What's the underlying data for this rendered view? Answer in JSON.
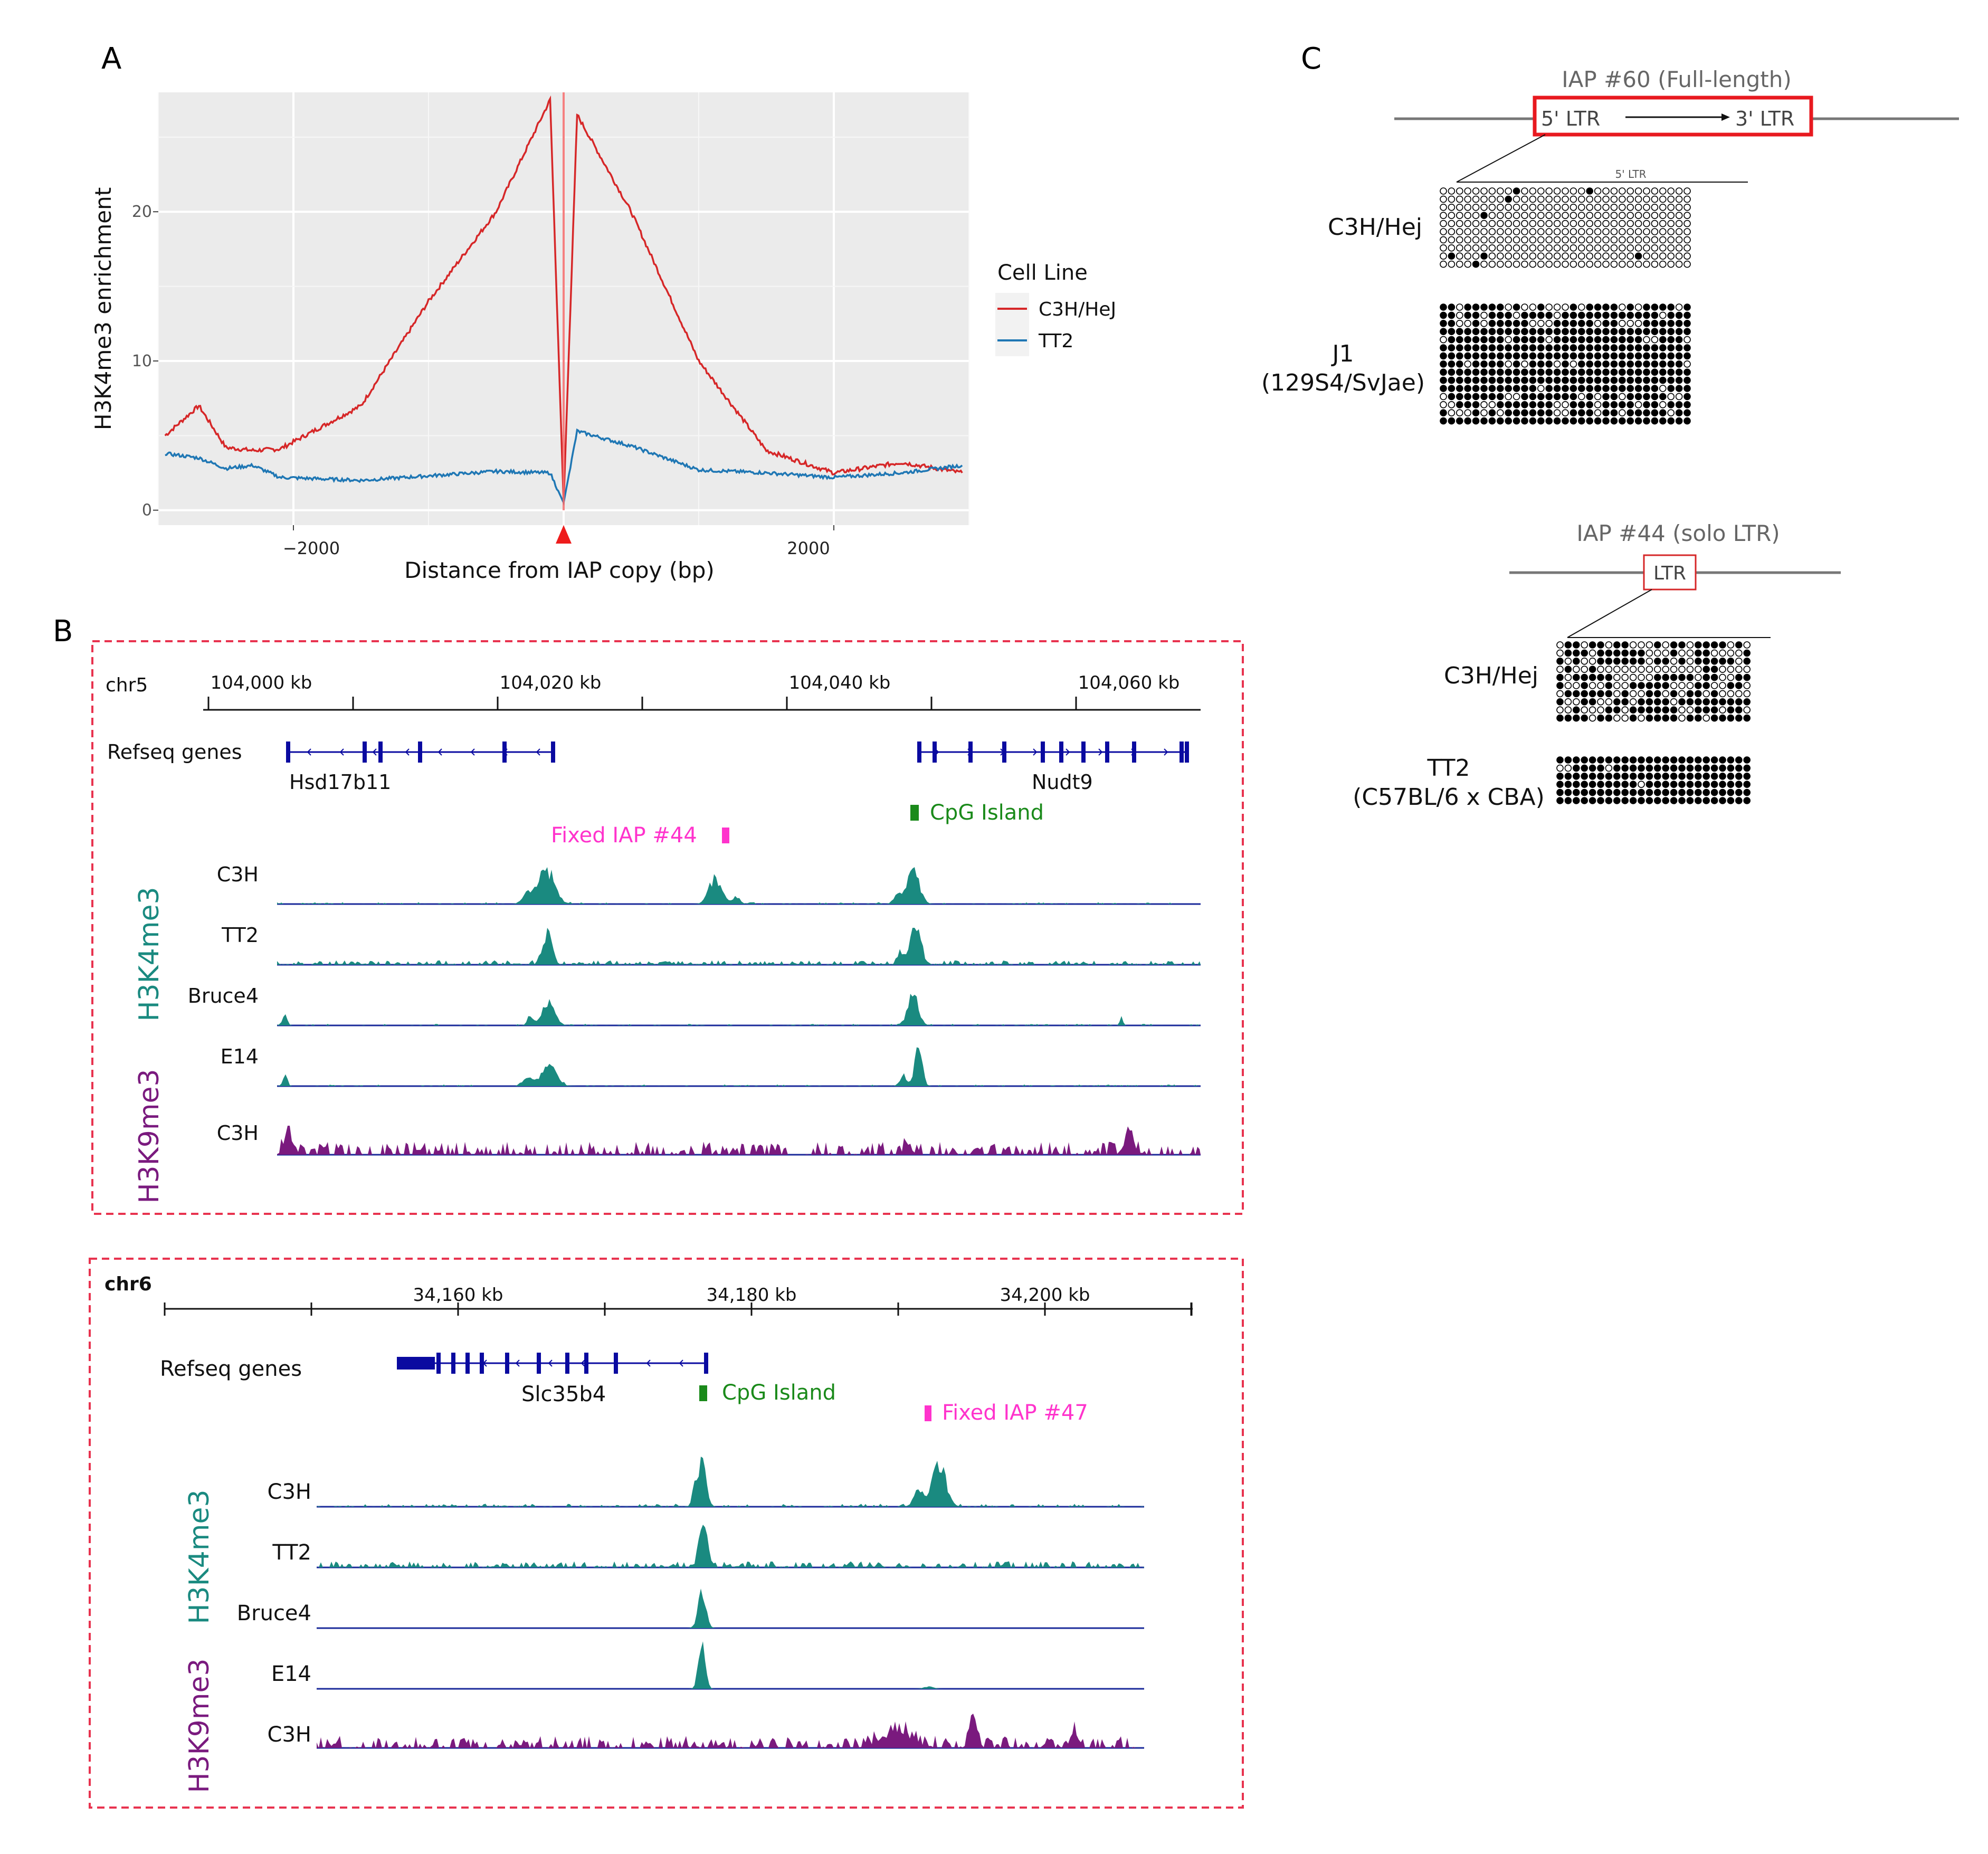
{
  "panel_labels": {
    "a": "A",
    "b": "B",
    "c": "C"
  },
  "panelA": {
    "ylabel": "H3K4me3 enrichment",
    "xlabel": "Distance from IAP copy (bp)",
    "legend_title": "Cell Line",
    "legend_items": [
      "C3H/HeJ",
      "TT2"
    ],
    "xticks": [
      "−2000",
      "2000"
    ],
    "yticks": [
      "20",
      "10",
      "0"
    ]
  },
  "panelB1": {
    "chrom": "chr5",
    "ticks": [
      "104,000 kb",
      "104,020 kb",
      "104,040 kb",
      "104,060 kb"
    ],
    "refseq_label": "Refseq genes",
    "gene1": "Hsd17b11",
    "gene2": "Nudt9",
    "cpg": "CpG Island",
    "iap": "Fixed IAP #44",
    "mark1": "H3K4me3",
    "mark2": "H3K9me3",
    "tracks": [
      "C3H",
      "TT2",
      "Bruce4",
      "E14",
      "C3H"
    ]
  },
  "panelB2": {
    "chrom": "chr6",
    "ticks": [
      "34,160 kb",
      "34,180 kb",
      "34,200 kb"
    ],
    "refseq_label": "Refseq genes",
    "gene": "Slc35b4",
    "cpg": "CpG Island",
    "iap": "Fixed IAP #47",
    "mark1": "H3K4me3",
    "mark2": "H3K9me3",
    "tracks": [
      "C3H",
      "TT2",
      "Bruce4",
      "E14",
      "C3H"
    ]
  },
  "panelC1": {
    "title": "IAP #60 (Full-length)",
    "ltr5": "5' LTR",
    "ltr3": "3' LTR",
    "small_label": "5' LTR",
    "strain1": "C3H/Hej",
    "strain2_line1": "J1",
    "strain2_line2": "(129S4/SvJae)"
  },
  "panelC2": {
    "title": "IAP #44  (solo LTR)",
    "ltr": "LTR",
    "strain1": "C3H/Hej",
    "strain2_line1": "TT2",
    "strain2_line2": "(C57BL/6 x CBA)"
  },
  "colors": {
    "c3h": "#d62728",
    "tt2": "#1f77b4",
    "h3k4": "#1a8a80",
    "h3k9": "#7a1a7e",
    "gene": "#0a0aa0",
    "cpg": "#1a8a1a",
    "iap": "#ff33cc",
    "box": "#e8334f"
  },
  "chart_data": {
    "type": "line",
    "title": "",
    "xlabel": "Distance from IAP copy (bp)",
    "ylabel": "H3K4me3 enrichment",
    "xlim": [
      -3000,
      3000
    ],
    "ylim": [
      -1,
      28
    ],
    "x": [
      -2950,
      -2700,
      -2500,
      -2300,
      -2100,
      -1500,
      -1000,
      -500,
      -100,
      0,
      100,
      500,
      1000,
      1500,
      2000,
      2500,
      2950
    ],
    "series": [
      {
        "name": "C3H/HeJ",
        "values": [
          5.0,
          7.0,
          4.2,
          4.0,
          4.1,
          7.0,
          14.0,
          20.0,
          27.5,
          0.5,
          26.5,
          20.0,
          10.0,
          4.0,
          2.5,
          3.2,
          2.5
        ]
      },
      {
        "name": "TT2",
        "values": [
          3.8,
          3.5,
          2.8,
          3.0,
          2.2,
          2.0,
          2.3,
          2.6,
          2.5,
          0.5,
          5.3,
          4.3,
          2.7,
          2.5,
          2.2,
          2.5,
          3.0
        ]
      }
    ]
  }
}
